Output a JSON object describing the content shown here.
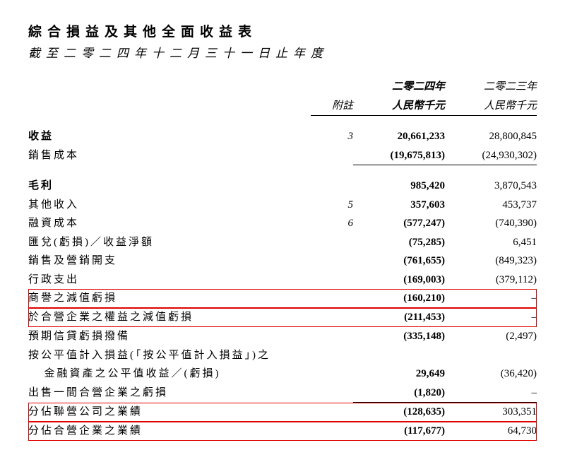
{
  "title": "綜合損益及其他全面收益表",
  "subtitle": "截至二零二四年十二月三十一日止年度",
  "headers": {
    "note": "附註",
    "y1_line1": "二零二四年",
    "y1_line2": "人民幣千元",
    "y2_line1": "二零二三年",
    "y2_line2": "人民幣千元"
  },
  "rows": {
    "revenue": {
      "label": "收益",
      "note": "3",
      "y1": "20,661,233",
      "y2": "28,800,845"
    },
    "cogs": {
      "label": "銷售成本",
      "note": "",
      "y1": "(19,675,813)",
      "y2": "(24,930,302)"
    },
    "gross": {
      "label": "毛利",
      "note": "",
      "y1": "985,420",
      "y2": "3,870,543"
    },
    "other_income": {
      "label": "其他收入",
      "note": "5",
      "y1": "357,603",
      "y2": "453,737"
    },
    "finance_cost": {
      "label": "融資成本",
      "note": "6",
      "y1": "(577,247)",
      "y2": "(740,390)"
    },
    "fx": {
      "label": "匯兌(虧損)／收益淨額",
      "note": "",
      "y1": "(75,285)",
      "y2": "6,451"
    },
    "selling": {
      "label": "銷售及營銷開支",
      "note": "",
      "y1": "(761,655)",
      "y2": "(849,323)"
    },
    "admin": {
      "label": "行政支出",
      "note": "",
      "y1": "(169,003)",
      "y2": "(379,112)"
    },
    "goodwill_imp": {
      "label": "商譽之減值虧損",
      "note": "",
      "y1": "(160,210)",
      "y2": "–"
    },
    "jv_equity_imp": {
      "label": "於合營企業之權益之減值虧損",
      "note": "",
      "y1": "(211,453)",
      "y2": "–"
    },
    "ecl": {
      "label": "預期信貸虧損撥備",
      "note": "",
      "y1": "(335,148)",
      "y2": "(2,497)"
    },
    "fvtpl_l1": {
      "label": "按公平值計入損益(「按公平值計入損益」)之",
      "note": "",
      "y1": "",
      "y2": ""
    },
    "fvtpl_l2": {
      "label": "金融資產之公平值收益／(虧損)",
      "note": "",
      "y1": "29,649",
      "y2": "(36,420)"
    },
    "disposal_jv": {
      "label": "出售一間合營企業之虧損",
      "note": "",
      "y1": "(1,820)",
      "y2": "–"
    },
    "share_assoc": {
      "label": "分佔聯營公司之業績",
      "note": "",
      "y1": "(128,635)",
      "y2": "303,351"
    },
    "share_jv": {
      "label": "分佔合營企業之業績",
      "note": "",
      "y1": "(117,677)",
      "y2": "64,730"
    }
  }
}
